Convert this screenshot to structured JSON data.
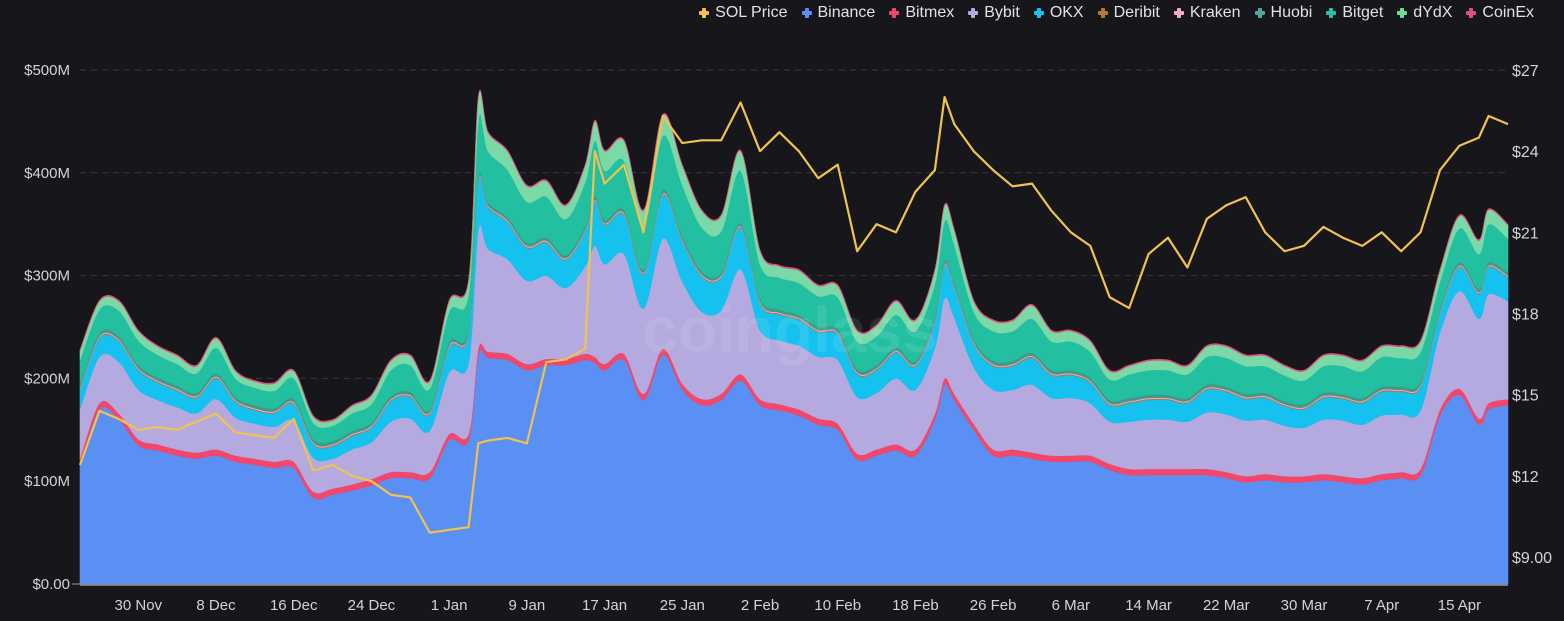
{
  "chart_data": {
    "type": "area",
    "stacked": true,
    "watermark": "coinglass",
    "x": [
      "2022-11-24",
      "2022-11-26",
      "2022-11-28",
      "2022-11-30",
      "2022-12-02",
      "2022-12-04",
      "2022-12-06",
      "2022-12-08",
      "2022-12-10",
      "2022-12-12",
      "2022-12-14",
      "2022-12-16",
      "2022-12-18",
      "2022-12-20",
      "2022-12-22",
      "2022-12-24",
      "2022-12-26",
      "2022-12-28",
      "2022-12-30",
      "2023-01-01",
      "2023-01-03",
      "2023-01-04",
      "2023-01-05",
      "2023-01-07",
      "2023-01-09",
      "2023-01-11",
      "2023-01-13",
      "2023-01-15",
      "2023-01-16",
      "2023-01-17",
      "2023-01-19",
      "2023-01-21",
      "2023-01-23",
      "2023-01-25",
      "2023-01-27",
      "2023-01-29",
      "2023-01-31",
      "2023-02-02",
      "2023-02-04",
      "2023-02-06",
      "2023-02-08",
      "2023-02-10",
      "2023-02-12",
      "2023-02-14",
      "2023-02-16",
      "2023-02-18",
      "2023-02-20",
      "2023-02-21",
      "2023-02-22",
      "2023-02-24",
      "2023-02-26",
      "2023-02-28",
      "2023-03-02",
      "2023-03-04",
      "2023-03-06",
      "2023-03-08",
      "2023-03-10",
      "2023-03-12",
      "2023-03-14",
      "2023-03-16",
      "2023-03-18",
      "2023-03-20",
      "2023-03-22",
      "2023-03-24",
      "2023-03-26",
      "2023-03-28",
      "2023-03-30",
      "2023-04-01",
      "2023-04-03",
      "2023-04-05",
      "2023-04-07",
      "2023-04-09",
      "2023-04-11",
      "2023-04-13",
      "2023-04-15",
      "2023-04-17",
      "2023-04-18",
      "2023-04-20"
    ],
    "x_range": [
      "2022-11-24",
      "2023-04-20"
    ],
    "x_tick_labels": [
      "30 Nov",
      "8 Dec",
      "16 Dec",
      "24 Dec",
      "1 Jan",
      "9 Jan",
      "17 Jan",
      "25 Jan",
      "2 Feb",
      "10 Feb",
      "18 Feb",
      "26 Feb",
      "6 Mar",
      "14 Mar",
      "22 Mar",
      "30 Mar",
      "7 Apr",
      "15 Apr"
    ],
    "x_tick_dates": [
      "2022-11-30",
      "2022-12-08",
      "2022-12-16",
      "2022-12-24",
      "2023-01-01",
      "2023-01-09",
      "2023-01-17",
      "2023-01-25",
      "2023-02-02",
      "2023-02-10",
      "2023-02-18",
      "2023-02-26",
      "2023-03-06",
      "2023-03-14",
      "2023-03-22",
      "2023-03-30",
      "2023-04-07",
      "2023-04-15"
    ],
    "y_left": {
      "unit": "USD millions",
      "range": [
        0,
        510
      ],
      "ticks": [
        0,
        100,
        200,
        300,
        400,
        500
      ],
      "tick_labels": [
        "$0.00",
        "$100M",
        "$200M",
        "$300M",
        "$400M",
        "$500M"
      ]
    },
    "y_right": {
      "unit": "USD",
      "range": [
        8,
        27
      ],
      "ticks": [
        9,
        12,
        15,
        18,
        21,
        24,
        27
      ],
      "tick_labels": [
        "$9.00",
        "$12",
        "$15",
        "$18",
        "$21",
        "$24",
        "$27"
      ]
    },
    "grid": "horizontal dashed",
    "legend_position": "top-right",
    "line_series": {
      "name": "SOL Price",
      "color": "#f0c24f",
      "axis": "right",
      "values": [
        12.4,
        14.4,
        14.1,
        13.7,
        13.8,
        13.7,
        14.0,
        14.3,
        13.6,
        13.5,
        13.4,
        14.1,
        12.2,
        12.4,
        12.0,
        11.8,
        11.3,
        11.2,
        9.9,
        10.0,
        10.1,
        13.2,
        13.3,
        13.4,
        13.2,
        16.2,
        16.3,
        16.7,
        24.0,
        22.8,
        23.5,
        21.0,
        25.3,
        24.3,
        24.4,
        24.4,
        25.8,
        24.0,
        24.7,
        24.0,
        23.0,
        23.5,
        20.3,
        21.3,
        21.0,
        22.5,
        23.3,
        26.0,
        25.0,
        24.0,
        23.3,
        22.7,
        22.8,
        21.8,
        21.0,
        20.5,
        18.6,
        18.2,
        20.2,
        20.8,
        19.7,
        21.5,
        22.0,
        22.3,
        21.0,
        20.3,
        20.5,
        21.2,
        20.8,
        20.5,
        21.0,
        20.3,
        21.0,
        23.3,
        24.2,
        24.5,
        25.3,
        25.0
      ]
    },
    "series": [
      {
        "name": "Binance",
        "color": "#5a8ff3",
        "values": [
          116,
          170,
          160,
          135,
          130,
          125,
          122,
          125,
          119,
          116,
          113,
          113,
          84,
          87,
          91,
          96,
          103,
          103,
          103,
          140,
          140,
          223,
          220,
          218,
          208,
          213,
          213,
          218,
          215,
          208,
          218,
          179,
          223,
          189,
          174,
          179,
          198,
          174,
          169,
          164,
          155,
          150,
          121,
          125,
          130,
          125,
          160,
          194,
          179,
          150,
          125,
          125,
          122,
          119,
          119,
          119,
          111,
          106,
          106,
          106,
          106,
          106,
          103,
          99,
          101,
          99,
          99,
          101,
          99,
          97,
          101,
          103,
          106,
          164,
          184,
          155,
          170,
          174
        ]
      },
      {
        "name": "Bitmex",
        "color": "#f0476a",
        "values": [
          6,
          6,
          6,
          6,
          6,
          6,
          6,
          6,
          6,
          6,
          6,
          6,
          6,
          6,
          6,
          6,
          6,
          6,
          6,
          6,
          6,
          6,
          6,
          6,
          6,
          6,
          6,
          6,
          6,
          6,
          6,
          6,
          6,
          6,
          6,
          6,
          6,
          6,
          6,
          6,
          6,
          6,
          6,
          6,
          6,
          6,
          6,
          6,
          6,
          6,
          6,
          6,
          6,
          6,
          6,
          6,
          6,
          6,
          6,
          6,
          6,
          6,
          6,
          6,
          6,
          6,
          6,
          6,
          6,
          6,
          6,
          6,
          6,
          6,
          6,
          6,
          6,
          6
        ]
      },
      {
        "name": "Bybit",
        "color": "#b4aadf",
        "values": [
          48,
          45,
          50,
          48,
          43,
          41,
          38,
          49,
          37,
          34,
          34,
          40,
          33,
          29,
          34,
          36,
          49,
          52,
          40,
          60,
          69,
          115,
          100,
          92,
          81,
          81,
          69,
          85,
          108,
          97,
          97,
          83,
          107,
          99,
          85,
          81,
          102,
          67,
          62,
          62,
          60,
          62,
          55,
          55,
          64,
          58,
          64,
          78,
          74,
          55,
          58,
          58,
          66,
          56,
          56,
          51,
          41,
          46,
          48,
          48,
          46,
          55,
          56,
          54,
          53,
          49,
          47,
          53,
          54,
          52,
          57,
          56,
          57,
          75,
          95,
          97,
          106,
          95
        ]
      },
      {
        "name": "OKX",
        "color": "#14c1ef",
        "values": [
          19,
          18,
          20,
          19,
          17,
          16,
          15,
          20,
          15,
          13,
          13,
          16,
          13,
          12,
          13,
          14,
          20,
          21,
          16,
          24,
          27,
          45,
          40,
          36,
          32,
          32,
          27,
          34,
          43,
          38,
          38,
          33,
          42,
          39,
          34,
          32,
          40,
          26,
          25,
          25,
          24,
          25,
          22,
          22,
          25,
          23,
          25,
          31,
          29,
          22,
          23,
          23,
          26,
          22,
          22,
          20,
          16,
          18,
          19,
          19,
          18,
          22,
          22,
          21,
          21,
          19,
          18,
          21,
          21,
          21,
          23,
          22,
          23,
          18,
          23,
          24,
          26,
          23
        ]
      },
      {
        "name": "Deribit",
        "color": "#b7773c",
        "values": [
          1,
          1,
          1,
          1,
          1,
          1,
          1,
          1,
          1,
          1,
          1,
          1,
          1,
          1,
          1,
          1,
          1,
          1,
          1,
          1,
          1,
          1,
          1,
          1,
          1,
          1,
          1,
          1,
          1,
          1,
          1,
          1,
          1,
          1,
          1,
          1,
          1,
          1,
          1,
          1,
          1,
          1,
          1,
          1,
          1,
          1,
          1,
          1,
          1,
          1,
          1,
          1,
          1,
          1,
          1,
          1,
          1,
          1,
          1,
          1,
          1,
          1,
          1,
          1,
          1,
          1,
          1,
          1,
          1,
          1,
          1,
          1,
          1,
          1,
          1,
          1,
          1,
          1
        ]
      },
      {
        "name": "Kraken",
        "color": "#f5a9c8",
        "values": [
          1,
          1,
          1,
          1,
          1,
          1,
          1,
          1,
          1,
          1,
          1,
          1,
          1,
          1,
          1,
          1,
          1,
          1,
          1,
          1,
          1,
          1,
          1,
          1,
          1,
          1,
          1,
          1,
          1,
          1,
          1,
          1,
          1,
          1,
          1,
          1,
          1,
          1,
          1,
          1,
          1,
          1,
          1,
          1,
          1,
          1,
          1,
          1,
          1,
          1,
          1,
          1,
          1,
          1,
          1,
          1,
          1,
          1,
          1,
          1,
          1,
          1,
          1,
          1,
          1,
          1,
          1,
          1,
          1,
          1,
          1,
          1,
          1,
          1,
          1,
          1,
          1,
          1
        ]
      },
      {
        "name": "Huobi",
        "color": "#3f9a8b",
        "values": [
          3,
          3,
          3,
          3,
          3,
          3,
          3,
          3,
          3,
          3,
          3,
          3,
          3,
          3,
          3,
          3,
          3,
          3,
          3,
          3,
          3,
          3,
          3,
          3,
          3,
          3,
          3,
          3,
          3,
          3,
          3,
          3,
          3,
          3,
          3,
          3,
          3,
          3,
          3,
          3,
          3,
          3,
          3,
          3,
          3,
          3,
          3,
          3,
          3,
          3,
          3,
          3,
          3,
          3,
          3,
          3,
          3,
          3,
          3,
          3,
          3,
          3,
          3,
          3,
          3,
          3,
          3,
          3,
          3,
          3,
          3,
          3,
          3,
          3,
          3,
          3,
          3,
          3
        ]
      },
      {
        "name": "Bitget",
        "color": "#23bfa1",
        "values": [
          24,
          23,
          25,
          24,
          22,
          21,
          19,
          25,
          18,
          17,
          17,
          20,
          16,
          15,
          17,
          18,
          25,
          26,
          20,
          30,
          35,
          57,
          50,
          46,
          40,
          40,
          35,
          43,
          54,
          48,
          48,
          42,
          53,
          50,
          43,
          40,
          51,
          33,
          31,
          31,
          30,
          31,
          27,
          28,
          32,
          29,
          32,
          39,
          37,
          27,
          29,
          29,
          33,
          28,
          28,
          25,
          20,
          23,
          24,
          24,
          23,
          27,
          28,
          27,
          26,
          25,
          23,
          26,
          27,
          26,
          29,
          28,
          29,
          26,
          33,
          34,
          37,
          33
        ]
      },
      {
        "name": "dYdX",
        "color": "#7bd9a7",
        "values": [
          9,
          8,
          9,
          9,
          8,
          8,
          7,
          9,
          7,
          6,
          7,
          7,
          6,
          5,
          7,
          8,
          9,
          9,
          7,
          10,
          13,
          22,
          18,
          18,
          15,
          15,
          13,
          16,
          19,
          19,
          19,
          15,
          20,
          19,
          16,
          15,
          19,
          13,
          11,
          12,
          10,
          11,
          10,
          10,
          13,
          10,
          13,
          15,
          14,
          10,
          10,
          10,
          13,
          10,
          10,
          10,
          8,
          8,
          9,
          9,
          8,
          10,
          11,
          10,
          10,
          9,
          9,
          10,
          10,
          10,
          10,
          11,
          10,
          11,
          12,
          13,
          14,
          13
        ]
      },
      {
        "name": "CoinEx",
        "color": "#e0507a",
        "values": [
          1,
          1,
          1,
          1,
          1,
          1,
          1,
          1,
          1,
          1,
          1,
          1,
          1,
          1,
          1,
          1,
          1,
          1,
          1,
          1,
          1,
          1,
          1,
          1,
          1,
          1,
          1,
          1,
          1,
          1,
          1,
          1,
          1,
          1,
          1,
          1,
          1,
          1,
          1,
          1,
          1,
          1,
          1,
          1,
          1,
          1,
          1,
          1,
          1,
          1,
          1,
          1,
          1,
          1,
          1,
          1,
          1,
          1,
          1,
          1,
          1,
          1,
          1,
          1,
          1,
          1,
          1,
          1,
          1,
          1,
          1,
          1,
          1,
          1,
          1,
          1,
          1,
          1
        ]
      }
    ]
  },
  "legend": [
    {
      "label": "SOL Price",
      "color": "#f0c24f"
    },
    {
      "label": "Binance",
      "color": "#5b8ff5"
    },
    {
      "label": "Bitmex",
      "color": "#f0476a"
    },
    {
      "label": "Bybit",
      "color": "#b3a9e0"
    },
    {
      "label": "OKX",
      "color": "#15c3f0"
    },
    {
      "label": "Deribit",
      "color": "#b7773c"
    },
    {
      "label": "Kraken",
      "color": "#f5a9c8"
    },
    {
      "label": "Huobi",
      "color": "#4fa89a"
    },
    {
      "label": "Bitget",
      "color": "#22c4a8"
    },
    {
      "label": "dYdX",
      "color": "#6fdc9a"
    },
    {
      "label": "CoinEx",
      "color": "#e0507a"
    }
  ]
}
